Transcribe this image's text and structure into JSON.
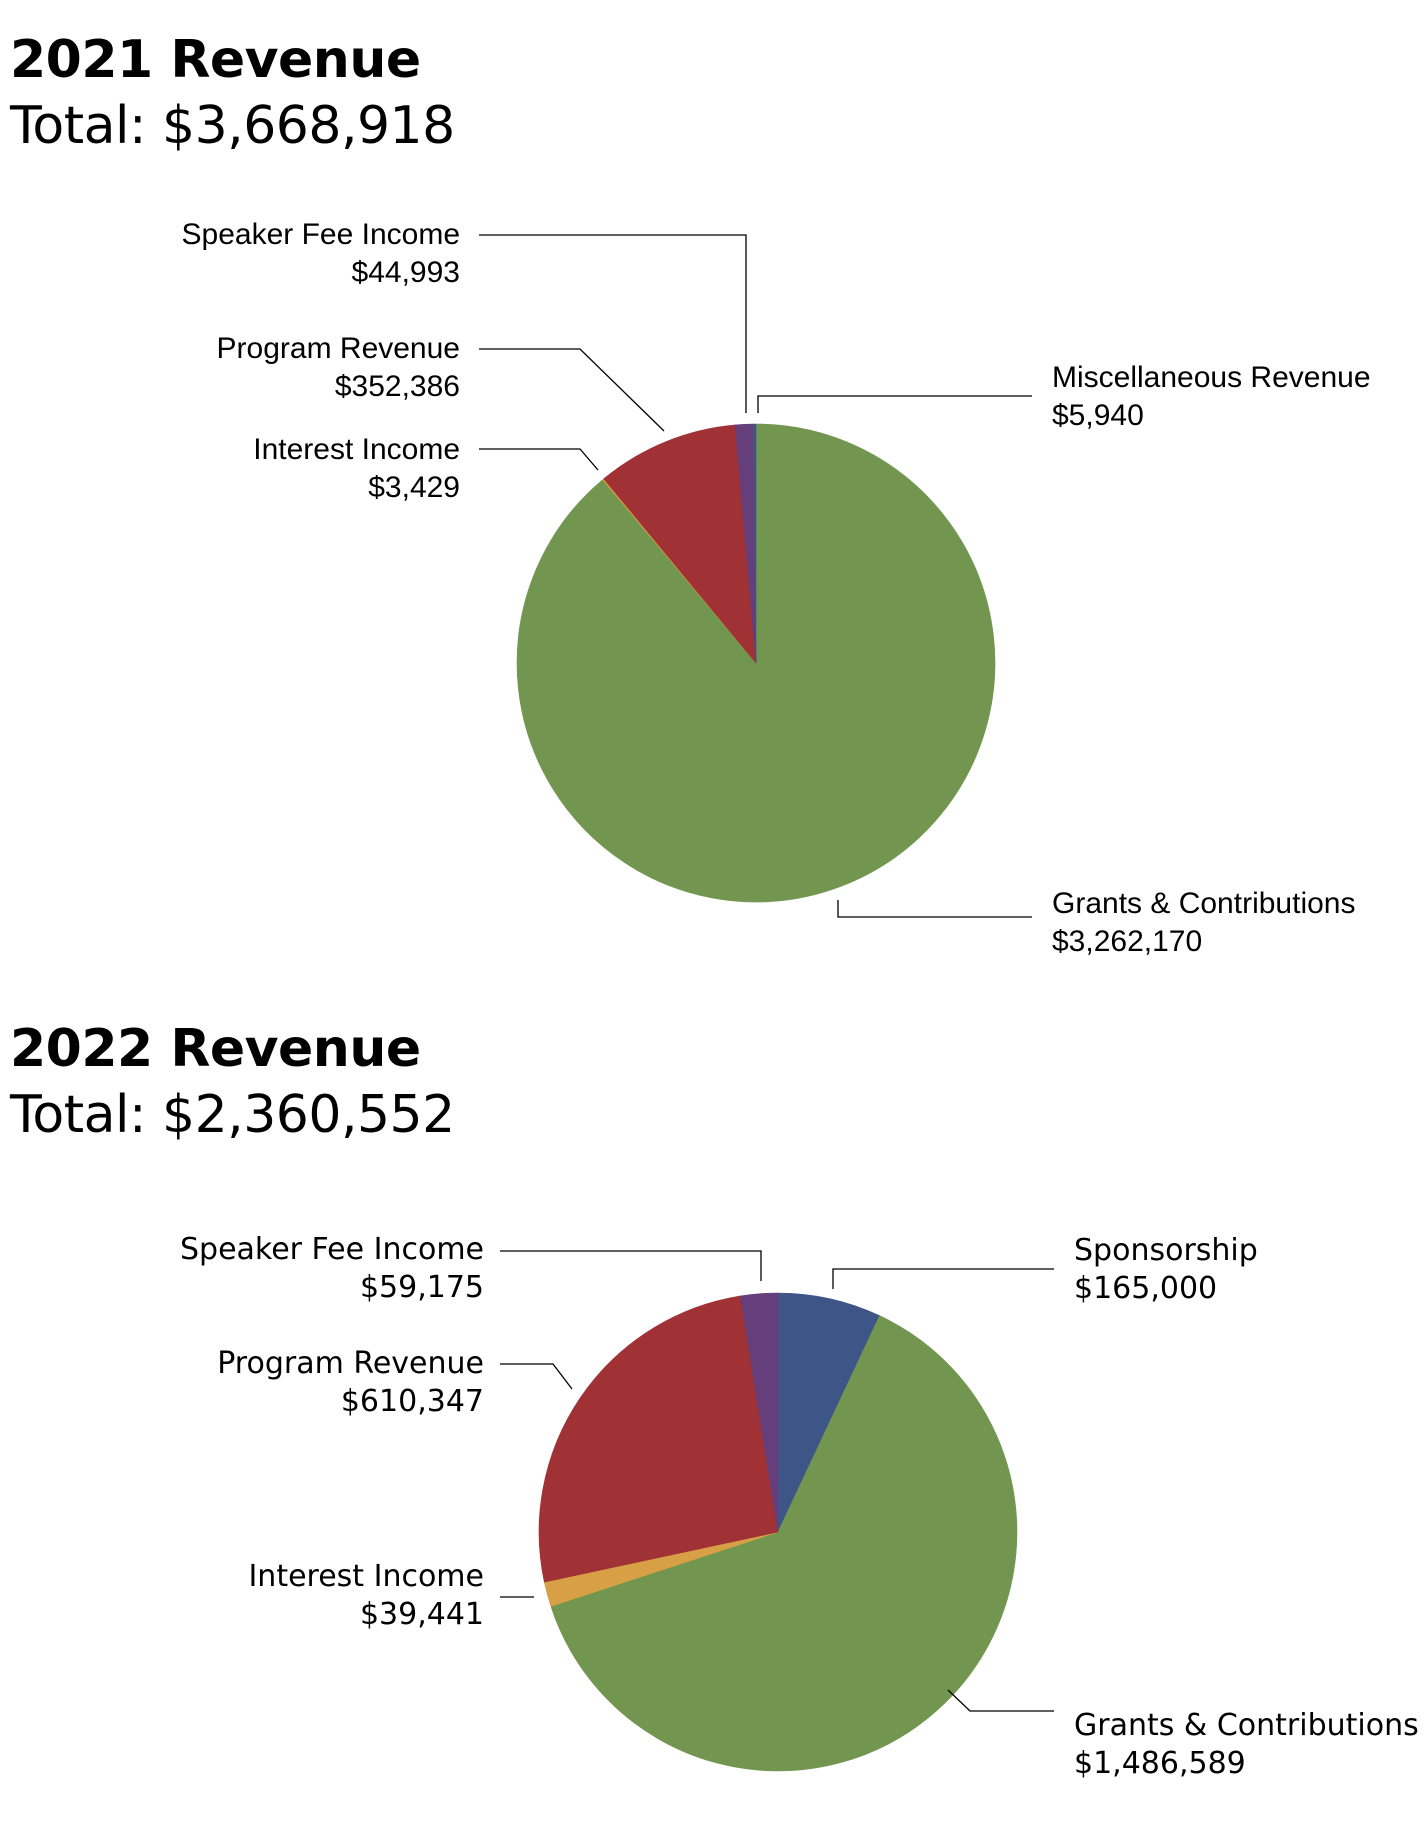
{
  "chart_data": [
    {
      "type": "pie",
      "title": "2021 Revenue",
      "subtitle": "Total: $3,668,918",
      "slices": [
        {
          "name": "Grants & Contributions",
          "value": 3262170,
          "value_label": "$3,262,170",
          "color": "#72964f"
        },
        {
          "name": "Interest Income",
          "value": 3429,
          "value_label": "$3,429",
          "color": "#d8a046"
        },
        {
          "name": "Program Revenue",
          "value": 352386,
          "value_label": "$352,386",
          "color": "#a03134"
        },
        {
          "name": "Speaker Fee Income",
          "value": 44993,
          "value_label": "$44,993",
          "color": "#643f7b"
        },
        {
          "name": "Miscellaneous Revenue",
          "value": 5940,
          "value_label": "$5,940",
          "color": "#3e5587"
        }
      ]
    },
    {
      "type": "pie",
      "title": "2022 Revenue",
      "subtitle": "Total: $2,360,552",
      "slices": [
        {
          "name": "Sponsorship",
          "value": 165000,
          "value_label": "$165,000",
          "color": "#3e5587"
        },
        {
          "name": "Grants & Contributions",
          "value": 1486589,
          "value_label": "$1,486,589",
          "color": "#72964f"
        },
        {
          "name": "Interest Income",
          "value": 39441,
          "value_label": "$39,441",
          "color": "#d8a046"
        },
        {
          "name": "Program Revenue",
          "value": 610347,
          "value_label": "$610,347",
          "color": "#a03134"
        },
        {
          "name": "Speaker Fee Income",
          "value": 59175,
          "value_label": "$59,175",
          "color": "#643f7b"
        }
      ]
    }
  ]
}
